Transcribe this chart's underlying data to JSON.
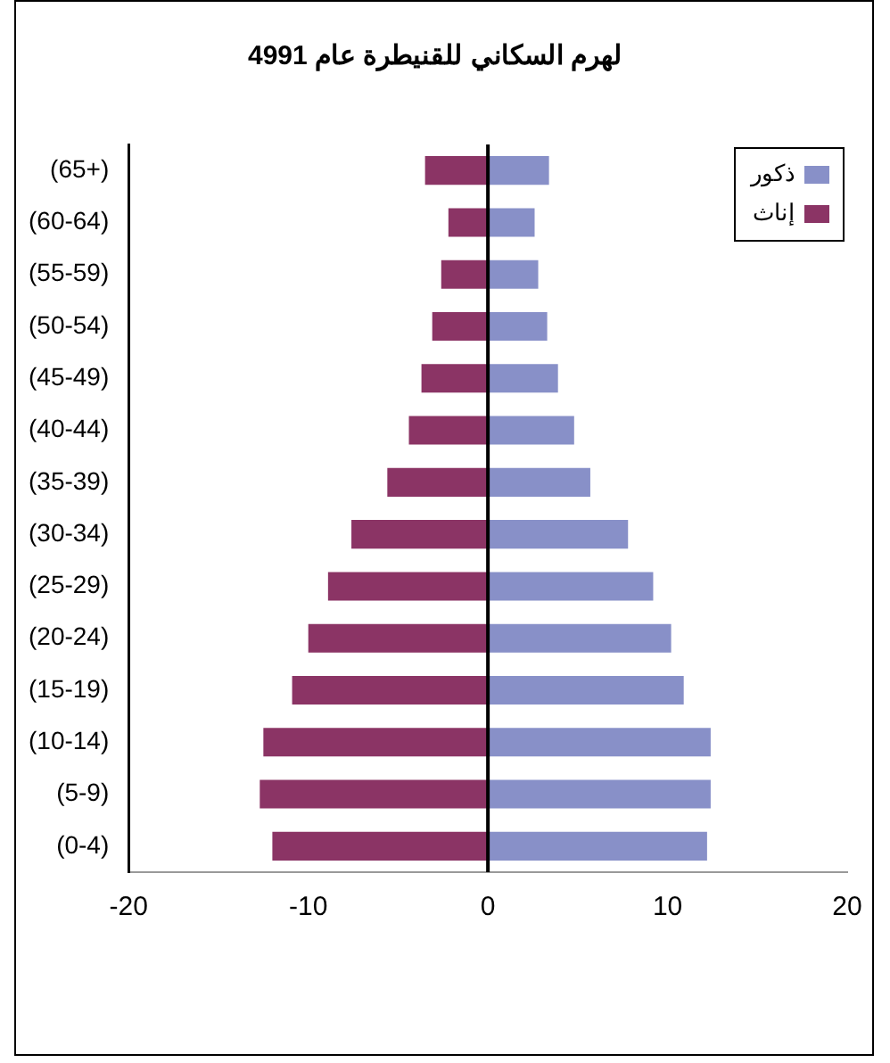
{
  "chart_data": {
    "type": "bar",
    "title": "لهرم السكاني للقنيطرة عام 4991",
    "orientation": "horizontal",
    "stacked": true,
    "categories": [
      "(65+)",
      "(60-64)",
      "(55-59)",
      "(50-54)",
      "(45-49)",
      "(40-44)",
      "(35-39)",
      "(30-34)",
      "(25-29)",
      "(20-24)",
      "(15-19)",
      "(10-14)",
      "(5-9)",
      "(0-4)"
    ],
    "series": [
      {
        "name": "ذكور",
        "color": "#8890c8",
        "values": [
          3.4,
          2.6,
          2.8,
          3.3,
          3.9,
          4.8,
          5.7,
          7.8,
          9.2,
          10.2,
          10.9,
          12.4,
          12.4,
          12.2
        ]
      },
      {
        "name": "إناث",
        "color": "#8b3465",
        "values": [
          -3.5,
          -2.2,
          -2.6,
          -3.1,
          -3.7,
          -4.4,
          -5.6,
          -7.6,
          -8.9,
          -10.0,
          -10.9,
          -12.5,
          -12.7,
          -12.0
        ]
      }
    ],
    "xlim": [
      -20,
      20
    ],
    "xticks": [
      -20,
      -10,
      0,
      10,
      20
    ],
    "grid": false,
    "ref_lines": [
      {
        "axis": "x",
        "value": 0,
        "color": "#000000"
      }
    ],
    "legend": "top right"
  }
}
